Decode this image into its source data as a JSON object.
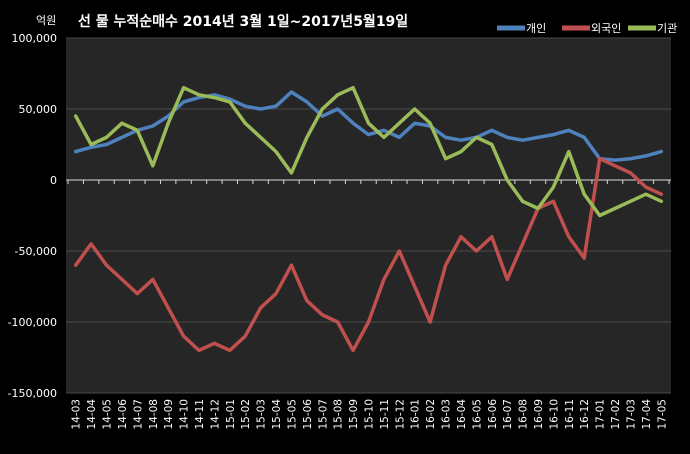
{
  "chart_data": {
    "type": "line",
    "title": "선 물 누적순매수 2014년 3월 1일~2017년5월19일",
    "unit_label": "억원",
    "ylim": [
      -150000,
      100000
    ],
    "yticks": [
      100000,
      50000,
      0,
      -50000,
      -100000,
      -150000
    ],
    "ytick_labels": [
      "100,000",
      "50,000",
      "0",
      "-50,000",
      "-100,000",
      "-150,000"
    ],
    "grid": true,
    "legend_position": "top-right",
    "x_tick_labels": [
      "14-03",
      "14-04",
      "14-05",
      "14-06",
      "14-07",
      "14-08",
      "14-09",
      "14-10",
      "14-11",
      "14-12",
      "15-01",
      "15-02",
      "15-03",
      "15-04",
      "15-05",
      "15-06",
      "15-07",
      "15-08",
      "15-09",
      "15-10",
      "15-11",
      "15-12",
      "16-01",
      "16-02",
      "16-03",
      "16-04",
      "16-05",
      "16-06",
      "16-07",
      "16-08",
      "16-09",
      "16-10",
      "16-11",
      "16-12",
      "17-01",
      "17-02",
      "17-03",
      "17-04",
      "17-05"
    ],
    "x": [
      0,
      1,
      2,
      3,
      4,
      5,
      6,
      7,
      8,
      9,
      10,
      11,
      12,
      13,
      14,
      15,
      16,
      17,
      18,
      19,
      20,
      21,
      22,
      23,
      24,
      25,
      26,
      27,
      28,
      29,
      30,
      31,
      32,
      33,
      34,
      35,
      36,
      37,
      38
    ],
    "series": [
      {
        "name": "개인",
        "color": "#4F81BD",
        "values": [
          20000,
          23000,
          25000,
          30000,
          35000,
          38000,
          45000,
          55000,
          58000,
          60000,
          57000,
          52000,
          50000,
          52000,
          62000,
          55000,
          45000,
          50000,
          40000,
          32000,
          35000,
          30000,
          40000,
          38000,
          30000,
          28000,
          30000,
          35000,
          30000,
          28000,
          30000,
          32000,
          35000,
          30000,
          15000,
          14000,
          15000,
          17000,
          20000
        ]
      },
      {
        "name": "외국인",
        "color": "#C0504D",
        "values": [
          -60000,
          -45000,
          -60000,
          -70000,
          -80000,
          -70000,
          -90000,
          -110000,
          -120000,
          -115000,
          -120000,
          -110000,
          -90000,
          -80000,
          -60000,
          -85000,
          -95000,
          -100000,
          -120000,
          -100000,
          -70000,
          -50000,
          -75000,
          -100000,
          -60000,
          -40000,
          -50000,
          -40000,
          -70000,
          -45000,
          -20000,
          -15000,
          -40000,
          -55000,
          15000,
          10000,
          5000,
          -5000,
          -10000
        ]
      },
      {
        "name": "기관",
        "color": "#9BBB59",
        "values": [
          45000,
          25000,
          30000,
          40000,
          35000,
          10000,
          40000,
          65000,
          60000,
          58000,
          55000,
          40000,
          30000,
          20000,
          5000,
          30000,
          50000,
          60000,
          65000,
          40000,
          30000,
          40000,
          50000,
          40000,
          15000,
          20000,
          30000,
          25000,
          0,
          -15000,
          -20000,
          -5000,
          20000,
          -10000,
          -25000,
          -20000,
          -15000,
          -10000,
          -15000
        ]
      }
    ]
  }
}
